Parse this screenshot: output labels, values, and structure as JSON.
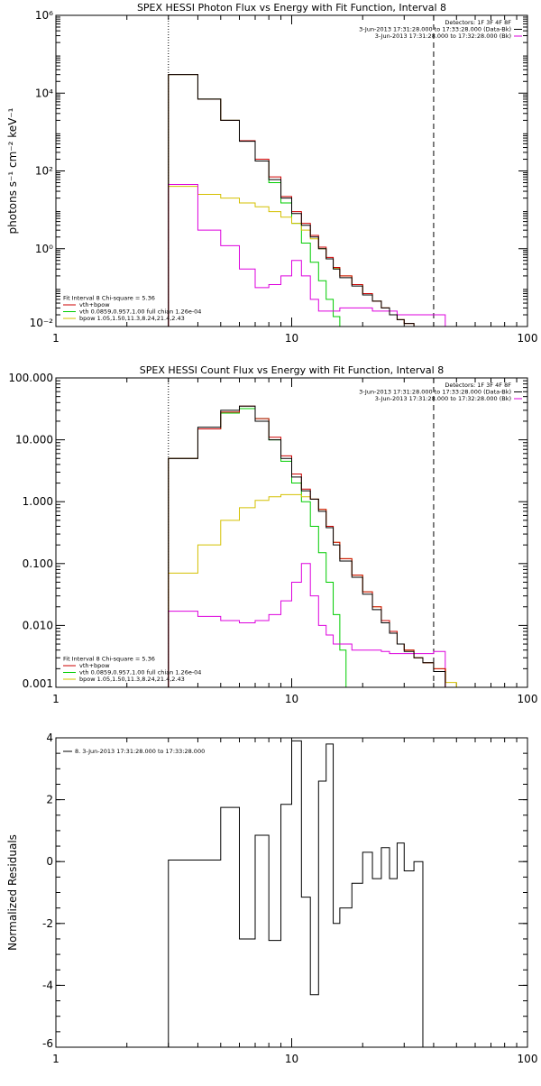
{
  "colors": {
    "data": "#000000",
    "model": "#cc0000",
    "vth": "#00cc00",
    "bpow": "#d4c000",
    "background": "#dd00dd"
  },
  "chart_data": [
    {
      "type": "line",
      "title": "SPEX HESSI Photon Flux vs Energy with Fit Function, Interval 8",
      "ylabel": "photons s⁻¹ cm⁻² keV⁻¹",
      "xlabel": "",
      "xscale": "log",
      "yscale": "log",
      "xlim": [
        1,
        100
      ],
      "ylim": [
        0.01,
        1000000
      ],
      "xticks": [
        {
          "v": 1,
          "label": "1"
        },
        {
          "v": 10,
          "label": "10"
        },
        {
          "v": 100,
          "label": "100"
        }
      ],
      "yticks": [
        {
          "v": 0.01,
          "label": "10⁻²"
        },
        {
          "v": 1,
          "label": "10⁰"
        },
        {
          "v": 100,
          "label": "10²"
        },
        {
          "v": 10000,
          "label": "10⁴"
        },
        {
          "v": 1000000,
          "label": "10⁶"
        }
      ],
      "vlines": [
        {
          "x": 3,
          "style": "dotted"
        },
        {
          "x": 40,
          "style": "dashed"
        }
      ],
      "legend_top": {
        "position": "top-right",
        "lines": [
          {
            "text": "Detectors: 1F 3F 4F 8F",
            "key": ""
          },
          {
            "text": "3-Jun-2013 17:31:28.000 to 17:33:28.000 (Data-Bk)",
            "key": "data"
          },
          {
            "text": "3-Jun-2013 17:31:28.000 to 17:32:28.000 (Bk)",
            "key": "background"
          }
        ]
      },
      "legend_bottom": {
        "position": "bottom-left",
        "lines": [
          {
            "text": "Fit Interval 8   Chi-square = 5.36",
            "key": ""
          },
          {
            "text": "vth+bpow",
            "key": "model"
          },
          {
            "text": "vth 0.0859,0.957,1.00  full chian 1.26e-04",
            "key": "vth"
          },
          {
            "text": "bpow 1.05,1.50,11.3,8.24,21.4,2.43",
            "key": "bpow"
          }
        ]
      },
      "series": [
        {
          "color_key": "vth",
          "x": [
            3,
            4,
            5,
            6,
            7,
            8,
            9,
            10,
            11,
            12,
            13,
            14,
            15,
            16
          ],
          "y": [
            30000,
            7000,
            2000,
            600,
            180,
            50,
            15,
            4.5,
            1.4,
            0.45,
            0.15,
            0.05,
            0.018,
            0.008
          ]
        },
        {
          "color_key": "bpow",
          "x": [
            3,
            4,
            5,
            6,
            7,
            8,
            9,
            10,
            11,
            12,
            13,
            14,
            15,
            16,
            18,
            20,
            22,
            24,
            26,
            28,
            30,
            33,
            36,
            40,
            45
          ],
          "y": [
            40,
            25,
            20,
            15,
            12,
            9,
            6.5,
            4.5,
            3,
            1.8,
            1,
            0.55,
            0.32,
            0.2,
            0.12,
            0.07,
            0.045,
            0.03,
            0.02,
            0.015,
            0.012,
            0.01,
            0.009,
            0.008,
            0.007
          ]
        },
        {
          "color_key": "background",
          "x": [
            3,
            4,
            5,
            6,
            7,
            8,
            9,
            10,
            11,
            12,
            13,
            14,
            15,
            16,
            18,
            20,
            22,
            24,
            26,
            28,
            30,
            33,
            36,
            40
          ],
          "y": [
            45,
            3,
            1.2,
            0.3,
            0.1,
            0.12,
            0.2,
            0.5,
            0.2,
            0.05,
            0.025,
            0.025,
            0.025,
            0.03,
            0.03,
            0.03,
            0.025,
            0.025,
            0.025,
            0.02,
            0.02,
            0.02,
            0.02,
            0.02
          ]
        },
        {
          "color_key": "model",
          "x": [
            3,
            4,
            5,
            6,
            7,
            8,
            9,
            10,
            11,
            12,
            13,
            14,
            15,
            16,
            18,
            20,
            22,
            24,
            26,
            28,
            30,
            33,
            36,
            40
          ],
          "y": [
            30000,
            7000,
            2000,
            600,
            200,
            70,
            22,
            9,
            4.5,
            2.2,
            1.1,
            0.6,
            0.33,
            0.2,
            0.12,
            0.07,
            0.045,
            0.03,
            0.02,
            0.015,
            0.012,
            0.01,
            0.009,
            0.008
          ]
        },
        {
          "color_key": "data",
          "x": [
            3,
            4,
            5,
            6,
            7,
            8,
            9,
            10,
            11,
            12,
            13,
            14,
            15,
            16,
            18,
            20,
            22,
            24,
            26,
            28,
            30,
            33,
            36,
            40
          ],
          "y": [
            30000,
            7000,
            2000,
            580,
            180,
            60,
            20,
            8,
            4,
            2,
            1,
            0.55,
            0.3,
            0.18,
            0.11,
            0.065,
            0.045,
            0.03,
            0.02,
            0.015,
            0.012,
            0.01,
            0.009,
            0.008
          ]
        }
      ]
    },
    {
      "type": "line",
      "title": "SPEX HESSI Count Flux vs Energy with Fit Function, Interval 8",
      "ylabel": "",
      "xlabel": "",
      "xscale": "log",
      "yscale": "log",
      "xlim": [
        1,
        100
      ],
      "ylim": [
        0.001,
        100
      ],
      "xticks": [
        {
          "v": 1,
          "label": "1"
        },
        {
          "v": 10,
          "label": "10"
        },
        {
          "v": 100,
          "label": "100"
        }
      ],
      "yticks": [
        {
          "v": 0.001,
          "label": "0.001"
        },
        {
          "v": 0.01,
          "label": "0.010"
        },
        {
          "v": 0.1,
          "label": "0.100"
        },
        {
          "v": 1,
          "label": "1.000"
        },
        {
          "v": 10,
          "label": "10.000"
        },
        {
          "v": 100,
          "label": "100.000"
        }
      ],
      "vlines": [
        {
          "x": 3,
          "style": "dotted"
        },
        {
          "x": 40,
          "style": "dashed"
        }
      ],
      "legend_top": {
        "position": "top-right",
        "lines": [
          {
            "text": "Detectors: 1F 3F 4F 8F",
            "key": ""
          },
          {
            "text": "3-Jun-2013 17:31:28.000 to 17:33:28.000 (Data-Bk)",
            "key": "data"
          },
          {
            "text": "3-Jun-2013 17:31:28.000 to 17:32:28.000 (Bk)",
            "key": "background"
          }
        ]
      },
      "legend_bottom": {
        "position": "bottom-left",
        "lines": [
          {
            "text": "Fit Interval 8   Chi-square = 5.36",
            "key": ""
          },
          {
            "text": "vth+bpow",
            "key": "model"
          },
          {
            "text": "vth 0.0859,0.957,1.00  full chian 1.26e-04",
            "key": "vth"
          },
          {
            "text": "bpow 1.05,1.50,11.3,8.24,21.4,2.43",
            "key": "bpow"
          }
        ]
      },
      "series": [
        {
          "color_key": "vth",
          "x": [
            3,
            4,
            5,
            6,
            7,
            8,
            9,
            10,
            11,
            12,
            13,
            14,
            15,
            16,
            17
          ],
          "y": [
            5,
            15,
            27,
            32,
            22,
            10,
            4.5,
            2,
            1,
            0.4,
            0.15,
            0.05,
            0.015,
            0.004,
            0.001
          ]
        },
        {
          "color_key": "bpow",
          "x": [
            3,
            4,
            5,
            6,
            7,
            8,
            9,
            10,
            11,
            12,
            13,
            14,
            15,
            16,
            18,
            20,
            22,
            24,
            26,
            28,
            30,
            33,
            36,
            40,
            45,
            50
          ],
          "y": [
            0.07,
            0.2,
            0.5,
            0.8,
            1.05,
            1.2,
            1.3,
            1.3,
            1.2,
            1.1,
            0.75,
            0.4,
            0.22,
            0.12,
            0.065,
            0.035,
            0.02,
            0.012,
            0.008,
            0.005,
            0.004,
            0.003,
            0.0025,
            0.002,
            0.0012,
            0.001
          ]
        },
        {
          "color_key": "background",
          "x": [
            3,
            4,
            5,
            6,
            7,
            8,
            9,
            10,
            11,
            12,
            13,
            14,
            15,
            16,
            18,
            20,
            22,
            24,
            26,
            28,
            30,
            33,
            36,
            40
          ],
          "y": [
            0.017,
            0.014,
            0.012,
            0.011,
            0.012,
            0.015,
            0.025,
            0.05,
            0.1,
            0.03,
            0.01,
            0.007,
            0.005,
            0.005,
            0.004,
            0.004,
            0.004,
            0.0038,
            0.0035,
            0.0035,
            0.0035,
            0.0035,
            0.0035,
            0.0038
          ]
        },
        {
          "color_key": "model",
          "x": [
            3,
            4,
            5,
            6,
            7,
            8,
            9,
            10,
            11,
            12,
            13,
            14,
            15,
            16,
            18,
            20,
            22,
            24,
            26,
            28,
            30,
            33,
            36,
            40
          ],
          "y": [
            5,
            15,
            28,
            35,
            22,
            11,
            5.5,
            2.8,
            1.6,
            1.1,
            0.75,
            0.4,
            0.22,
            0.12,
            0.065,
            0.035,
            0.02,
            0.012,
            0.008,
            0.005,
            0.004,
            0.003,
            0.0025,
            0.002
          ]
        },
        {
          "color_key": "data",
          "x": [
            3,
            4,
            5,
            6,
            7,
            8,
            9,
            10,
            11,
            12,
            13,
            14,
            15,
            16,
            18,
            20,
            22,
            24,
            26,
            28,
            30,
            33,
            36,
            40
          ],
          "y": [
            5,
            16,
            30,
            35,
            20,
            10,
            5,
            2.5,
            1.5,
            1.1,
            0.7,
            0.38,
            0.2,
            0.11,
            0.06,
            0.032,
            0.018,
            0.011,
            0.0075,
            0.005,
            0.0038,
            0.003,
            0.0025,
            0.0018
          ]
        }
      ]
    },
    {
      "type": "line",
      "title": "",
      "ylabel": "Normalized Residuals",
      "xlabel": "",
      "xscale": "log",
      "yscale": "linear",
      "xlim": [
        1,
        100
      ],
      "ylim": [
        -6,
        4
      ],
      "xticks": [
        {
          "v": 1,
          "label": "1"
        },
        {
          "v": 10,
          "label": "10"
        },
        {
          "v": 100,
          "label": "100"
        }
      ],
      "yticks": [
        {
          "v": -6,
          "label": "-6"
        },
        {
          "v": -4,
          "label": "-4"
        },
        {
          "v": -2,
          "label": "-2"
        },
        {
          "v": 0,
          "label": "0"
        },
        {
          "v": 2,
          "label": "2"
        },
        {
          "v": 4,
          "label": "4"
        }
      ],
      "vlines": [],
      "legend_top": {
        "position": "top-left",
        "lines": [
          {
            "text": "8. 3-Jun-2013 17:31:28.000 to 17:33:28.000",
            "key": "data"
          }
        ]
      },
      "legend_bottom": {
        "position": "bottom-left",
        "lines": []
      },
      "series": [
        {
          "color_key": "data",
          "x": [
            3,
            4,
            5,
            6,
            7,
            8,
            9,
            10,
            11,
            12,
            13,
            14,
            15,
            16,
            18,
            20,
            22,
            24,
            26,
            28,
            30,
            33,
            36,
            40
          ],
          "y": [
            0.05,
            0.05,
            1.75,
            -2.5,
            0.85,
            -2.55,
            1.85,
            3.9,
            -1.15,
            -4.3,
            2.6,
            3.8,
            -2,
            -1.5,
            -0.7,
            0.3,
            -0.55,
            0.45,
            -0.55,
            0.6,
            -0.3,
            0,
            -6,
            -6
          ],
          "draw_until": 40
        }
      ]
    }
  ]
}
